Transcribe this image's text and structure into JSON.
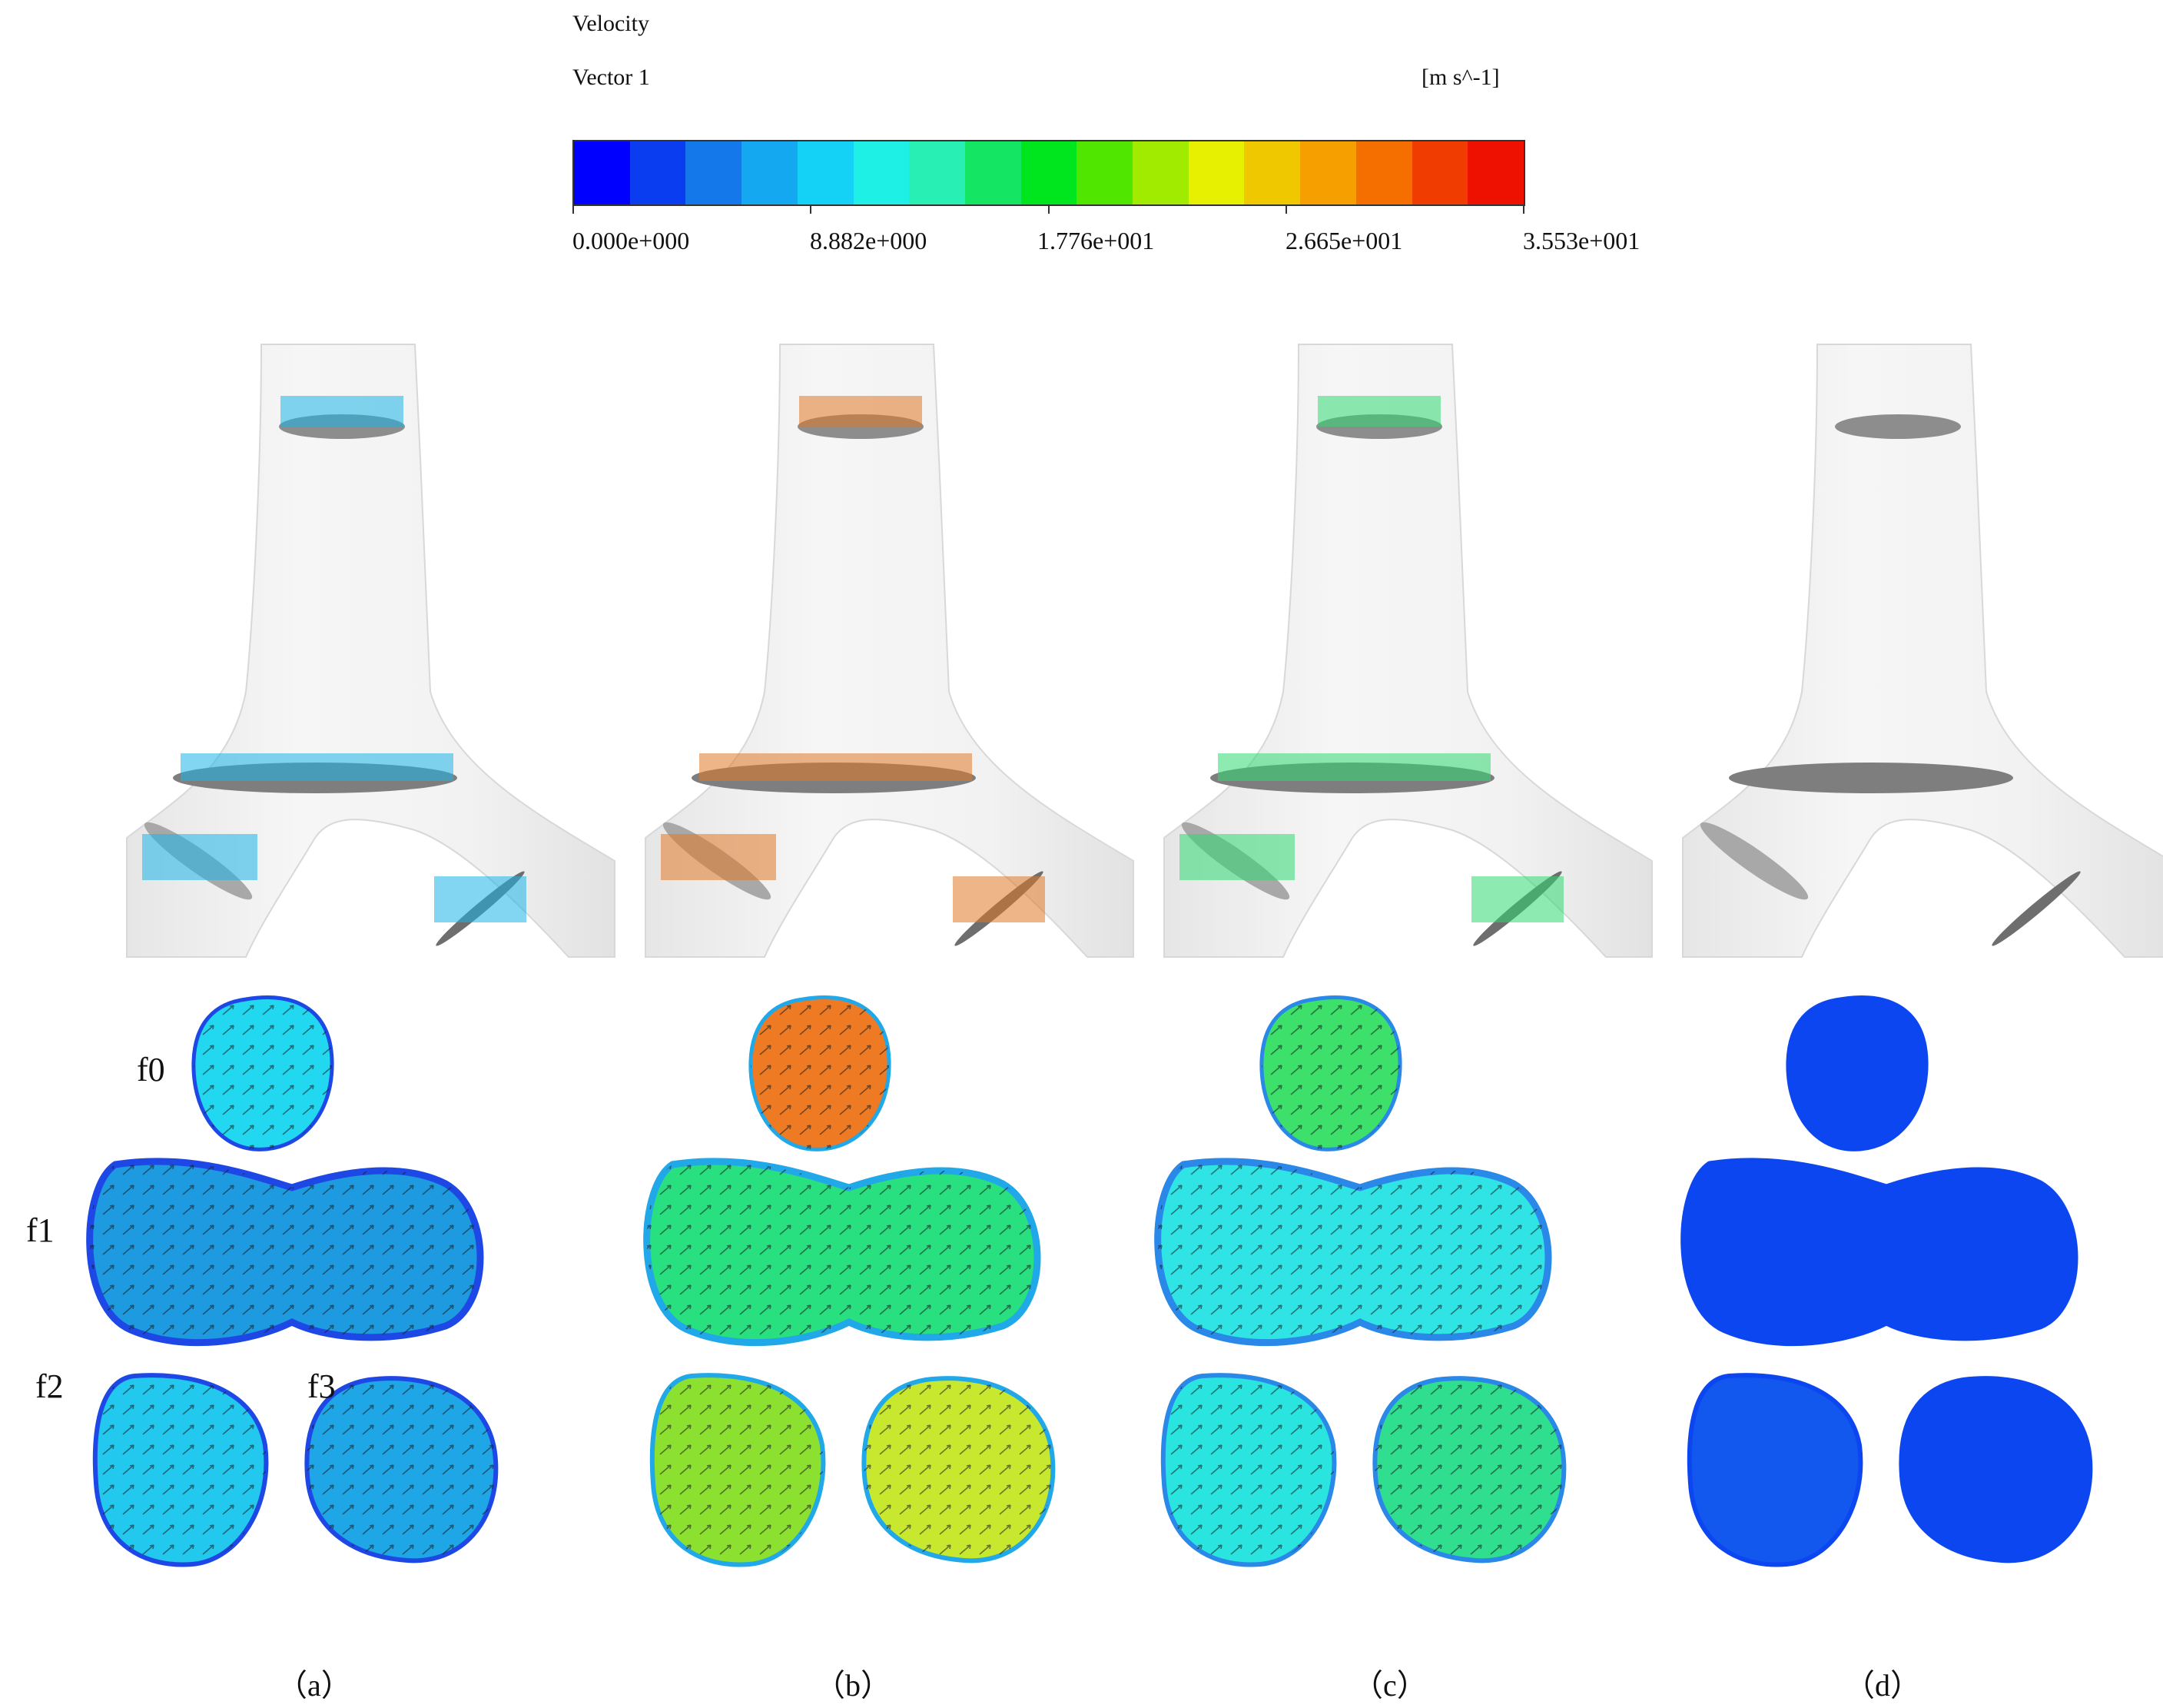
{
  "legend": {
    "title": "Velocity",
    "subtitle": "Vector 1",
    "unit": "[m s^-1]",
    "ticks": [
      "0.000e+000",
      "8.882e+000",
      "1.776e+001",
      "2.665e+001",
      "3.553e+001"
    ],
    "colormap": [
      "#0000ff",
      "#0a3cf0",
      "#1478ea",
      "#14a8f0",
      "#14d2f5",
      "#1ef0e6",
      "#28f0b4",
      "#14e664",
      "#00e61e",
      "#50e600",
      "#a0eb00",
      "#e6f000",
      "#f0c800",
      "#f5a000",
      "#f56e00",
      "#f03c00",
      "#ee1000"
    ]
  },
  "section_labels": [
    "f0",
    "f1",
    "f2",
    "f3"
  ],
  "panel_labels": [
    "（a）",
    "（b）",
    "（c）",
    "（d）"
  ],
  "panels": [
    {
      "id": "a",
      "inlet_arrows": "#1eb4e6",
      "f0": "#22d8f0",
      "f1": "#1e9ae0",
      "f1_edge": "#1e48e6",
      "f2": "#22c8ee",
      "f3": "#1fa6e6",
      "arrows": true
    },
    {
      "id": "b",
      "inlet_arrows": "#e07828",
      "f0": "#ee7a24",
      "f1": "#28e080",
      "f1_edge": "#20a8e8",
      "f2": "#8ce030",
      "f3": "#c8e830",
      "arrows": true
    },
    {
      "id": "c",
      "inlet_arrows": "#30d870",
      "f0": "#3ce06a",
      "f1": "#30e4e6",
      "f1_edge": "#2a88e8",
      "f2": "#2ae4e0",
      "f3": "#30de90",
      "arrows": true
    },
    {
      "id": "d",
      "inlet_arrows": "#9a9a9a",
      "f0": "#0c46f0",
      "f1": "#0c46f0",
      "f1_edge": "#0c46f0",
      "f2": "#1258ee",
      "f3": "#0c46f0",
      "arrows": false
    }
  ]
}
